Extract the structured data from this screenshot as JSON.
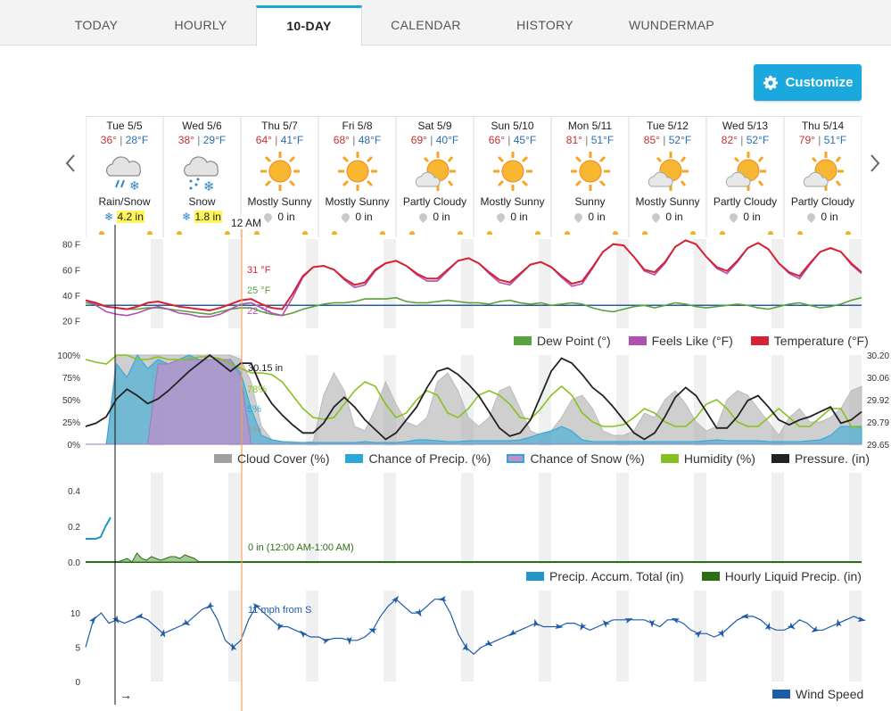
{
  "tabs": [
    {
      "label": "TODAY",
      "active": false
    },
    {
      "label": "HOURLY",
      "active": false
    },
    {
      "label": "10-DAY",
      "active": true
    },
    {
      "label": "CALENDAR",
      "active": false
    },
    {
      "label": "HISTORY",
      "active": false
    },
    {
      "label": "WUNDERMAP",
      "active": false
    }
  ],
  "customize_label": "Customize",
  "days": [
    {
      "name": "Tue 5/5",
      "hi": "36°",
      "lo": "28°F",
      "icon": "cloud-rain-snow-icon",
      "cond": "Rain/Snow",
      "precip": "4.2 in",
      "precip_type": "snow",
      "highlight": true
    },
    {
      "name": "Wed 5/6",
      "hi": "38°",
      "lo": "29°F",
      "icon": "cloud-snow-icon",
      "cond": "Snow",
      "precip": "1.8 in",
      "precip_type": "snow",
      "highlight": true
    },
    {
      "name": "Thu 5/7",
      "hi": "64°",
      "lo": "41°F",
      "icon": "sun-icon",
      "cond": "Mostly Sunny",
      "precip": "0 in",
      "precip_type": "rain",
      "highlight": false
    },
    {
      "name": "Fri 5/8",
      "hi": "68°",
      "lo": "48°F",
      "icon": "sun-icon",
      "cond": "Mostly Sunny",
      "precip": "0 in",
      "precip_type": "rain",
      "highlight": false
    },
    {
      "name": "Sat 5/9",
      "hi": "69°",
      "lo": "40°F",
      "icon": "sun-cloud-icon",
      "cond": "Partly Cloudy",
      "precip": "0 in",
      "precip_type": "rain",
      "highlight": false
    },
    {
      "name": "Sun 5/10",
      "hi": "66°",
      "lo": "45°F",
      "icon": "sun-icon",
      "cond": "Mostly Sunny",
      "precip": "0 in",
      "precip_type": "rain",
      "highlight": false
    },
    {
      "name": "Mon 5/11",
      "hi": "81°",
      "lo": "51°F",
      "icon": "sun-icon",
      "cond": "Sunny",
      "precip": "0 in",
      "precip_type": "rain",
      "highlight": false
    },
    {
      "name": "Tue 5/12",
      "hi": "85°",
      "lo": "52°F",
      "icon": "sun-cloud-icon",
      "cond": "Mostly Sunny",
      "precip": "0 in",
      "precip_type": "rain",
      "highlight": false
    },
    {
      "name": "Wed 5/13",
      "hi": "82°",
      "lo": "52°F",
      "icon": "sun-cloud-icon",
      "cond": "Partly Cloudy",
      "precip": "0 in",
      "precip_type": "rain",
      "highlight": false
    },
    {
      "name": "Thu 5/14",
      "hi": "79°",
      "lo": "51°F",
      "icon": "sun-cloud-icon",
      "cond": "Partly Cloudy",
      "precip": "0 in",
      "precip_type": "rain",
      "highlight": false
    }
  ],
  "cursor": {
    "time_label": "12 AM"
  },
  "colors": {
    "temperature": "#d62234",
    "feels_like": "#b050b0",
    "dew_point": "#5aa13f",
    "cloud_cover": "#a0a0a0",
    "chance_precip": "#2aa8d8",
    "chance_snow": "#c28fc9",
    "humidity": "#86c21f",
    "pressure": "#222222",
    "accum": "#2495c9",
    "hourly_liquid": "#2c6e14",
    "wind": "#1e5ba8",
    "freeze_line": "#2a5d9f",
    "cursor": "#f0a060"
  },
  "chart_data": [
    {
      "type": "line",
      "name": "temperature-panel",
      "ylabel_ticks": [
        "80 F",
        "60 F",
        "40 F",
        "20 F"
      ],
      "yticks": [
        80,
        60,
        40,
        20
      ],
      "ylim": [
        14,
        84
      ],
      "freeze_line": 32,
      "series": [
        {
          "name": "Temperature (°F)",
          "values": [
            36,
            34,
            31,
            30,
            29,
            31,
            34,
            35,
            33,
            31,
            30,
            29,
            28,
            30,
            33,
            36,
            37,
            33,
            30,
            29,
            41,
            55,
            62,
            63,
            60,
            53,
            48,
            50,
            60,
            65,
            67,
            63,
            57,
            53,
            53,
            60,
            67,
            69,
            65,
            58,
            52,
            50,
            57,
            64,
            66,
            62,
            55,
            49,
            51,
            62,
            74,
            80,
            79,
            70,
            60,
            58,
            66,
            78,
            83,
            80,
            70,
            62,
            59,
            67,
            77,
            81,
            76,
            65,
            58,
            55,
            65,
            74,
            77,
            74,
            65,
            58
          ]
        },
        {
          "name": "Feels Like (°F)",
          "values": [
            36,
            32,
            27,
            25,
            24,
            26,
            29,
            31,
            29,
            26,
            25,
            23,
            23,
            25,
            29,
            33,
            34,
            30,
            26,
            24,
            38,
            54,
            62,
            63,
            60,
            52,
            46,
            48,
            59,
            65,
            67,
            63,
            56,
            51,
            51,
            59,
            67,
            69,
            65,
            57,
            50,
            48,
            56,
            64,
            66,
            62,
            54,
            47,
            49,
            61,
            74,
            80,
            79,
            70,
            59,
            56,
            65,
            78,
            83,
            80,
            70,
            61,
            57,
            66,
            77,
            81,
            76,
            65,
            57,
            53,
            64,
            74,
            77,
            74,
            64,
            57
          ]
        },
        {
          "name": "Dew Point (°)",
          "values": [
            34,
            33,
            31,
            30,
            29,
            29,
            30,
            30,
            29,
            28,
            27,
            26,
            25,
            27,
            29,
            30,
            30,
            27,
            25,
            24,
            26,
            29,
            31,
            33,
            34,
            34,
            35,
            37,
            37,
            37,
            38,
            35,
            34,
            34,
            35,
            36,
            35,
            34,
            34,
            33,
            35,
            36,
            34,
            33,
            34,
            32,
            33,
            34,
            33,
            30,
            28,
            27,
            29,
            31,
            32,
            30,
            32,
            34,
            33,
            31,
            30,
            31,
            32,
            33,
            32,
            30,
            29,
            31,
            33,
            34,
            32,
            30,
            31,
            33,
            36,
            38
          ]
        }
      ],
      "readout": {
        "temperature": "31 °F",
        "dew_point": "25 °F",
        "feels_like": "22 °F"
      },
      "legend": [
        "Dew Point (°)",
        "Feels Like (°F)",
        "Temperature (°F)"
      ]
    },
    {
      "type": "area",
      "name": "clouds-precip-panel",
      "left_ticks": [
        "100%",
        "75%",
        "50%",
        "25%",
        "0%"
      ],
      "right_ticks": [
        "30.20",
        "30.06",
        "29.92",
        "29.79",
        "29.65"
      ],
      "series": [
        {
          "name": "Cloud Cover (%)",
          "values": [
            0,
            0,
            0,
            100,
            100,
            100,
            100,
            100,
            100,
            100,
            100,
            100,
            100,
            100,
            100,
            95,
            70,
            20,
            5,
            3,
            3,
            2,
            3,
            55,
            80,
            60,
            20,
            15,
            40,
            70,
            45,
            25,
            20,
            30,
            70,
            80,
            60,
            30,
            20,
            30,
            60,
            65,
            40,
            15,
            10,
            15,
            30,
            50,
            55,
            40,
            15,
            10,
            10,
            15,
            35,
            30,
            50,
            60,
            45,
            25,
            15,
            20,
            50,
            60,
            55,
            40,
            25,
            10,
            30,
            40,
            25,
            25,
            30,
            40,
            60,
            65
          ]
        },
        {
          "name": "Chance of Precip. (%)",
          "values": [
            0,
            0,
            0,
            90,
            75,
            100,
            85,
            95,
            90,
            95,
            100,
            95,
            95,
            95,
            95,
            80,
            40,
            10,
            5,
            3,
            2,
            2,
            2,
            2,
            2,
            2,
            2,
            3,
            2,
            2,
            2,
            3,
            5,
            5,
            4,
            3,
            3,
            4,
            4,
            4,
            4,
            4,
            5,
            8,
            12,
            15,
            20,
            15,
            5,
            3,
            3,
            3,
            3,
            3,
            3,
            3,
            3,
            3,
            3,
            3,
            4,
            5,
            4,
            4,
            4,
            4,
            3,
            3,
            3,
            3,
            4,
            5,
            10,
            20,
            20,
            20
          ]
        },
        {
          "name": "Chance of Snow (%)",
          "values": [
            0,
            0,
            0,
            0,
            0,
            0,
            0,
            90,
            90,
            95,
            95,
            95,
            95,
            95,
            95,
            75,
            0,
            0,
            0,
            0,
            0,
            0,
            0,
            0,
            0,
            0,
            0,
            0,
            0,
            0,
            0,
            0,
            0,
            0,
            0,
            0,
            0,
            0,
            0,
            0,
            0,
            0,
            0,
            0,
            0,
            0,
            0,
            0,
            0,
            0,
            0,
            0,
            0,
            0,
            0,
            0,
            0,
            0,
            0,
            0,
            0,
            0,
            0,
            0,
            0,
            0,
            0,
            0,
            0,
            0,
            0,
            0,
            0,
            0,
            0,
            0
          ]
        },
        {
          "name": "Humidity (%)",
          "values": [
            95,
            92,
            90,
            100,
            100,
            95,
            95,
            98,
            95,
            95,
            96,
            98,
            98,
            96,
            90,
            85,
            80,
            80,
            78,
            70,
            55,
            40,
            30,
            28,
            30,
            45,
            60,
            70,
            65,
            45,
            30,
            35,
            50,
            60,
            55,
            35,
            30,
            40,
            55,
            60,
            55,
            45,
            30,
            28,
            40,
            55,
            65,
            55,
            35,
            25,
            20,
            20,
            22,
            30,
            40,
            35,
            25,
            20,
            20,
            30,
            45,
            50,
            40,
            25,
            20,
            20,
            30,
            40,
            30,
            20,
            20,
            30,
            40,
            40,
            20,
            18
          ]
        },
        {
          "name": "Pressure. (in)",
          "values": [
            29.76,
            29.78,
            29.82,
            29.93,
            29.99,
            29.95,
            29.9,
            29.93,
            29.98,
            30.04,
            30.1,
            30.15,
            30.2,
            30.15,
            30.1,
            30.15,
            30.15,
            30.0,
            29.9,
            29.83,
            29.77,
            29.72,
            29.72,
            29.78,
            29.88,
            29.94,
            29.88,
            29.8,
            29.74,
            29.68,
            29.72,
            29.8,
            29.88,
            30.0,
            30.1,
            30.12,
            30.08,
            30.02,
            29.95,
            29.85,
            29.75,
            29.7,
            29.72,
            29.8,
            29.95,
            30.1,
            30.18,
            30.15,
            30.08,
            30.0,
            29.95,
            29.88,
            29.8,
            29.72,
            29.68,
            29.72,
            29.82,
            29.94,
            30.0,
            29.95,
            29.85,
            29.75,
            29.75,
            29.82,
            29.92,
            29.95,
            29.88,
            29.8,
            29.77,
            29.8,
            29.82,
            29.85,
            29.88,
            29.78,
            29.8,
            29.85
          ]
        }
      ],
      "readout": {
        "pressure": "30.15 in",
        "humidity": "78%",
        "chance_precip": "5%",
        "cloud_cover": "1%"
      },
      "legend": [
        "Cloud Cover (%)",
        "Chance of Precip. (%)",
        "Chance of Snow (%)",
        "Humidity (%)",
        "Pressure. (in)"
      ]
    },
    {
      "type": "area",
      "name": "precip-amount-panel",
      "yticks": [
        "0.4",
        "0.2",
        "0.0"
      ],
      "ylim": [
        0,
        0.5
      ],
      "series": [
        {
          "name": "Precip. Accum. Total (in)",
          "values": [
            0.13,
            0.13,
            0.13,
            0.14,
            0.2,
            0.25
          ]
        },
        {
          "name": "Hourly Liquid Precip. (in)",
          "values": [
            0.0,
            0.01,
            0.02,
            0.0,
            0.05,
            0.02,
            0.01,
            0.03,
            0.02,
            0.01,
            0.02,
            0.03,
            0.03,
            0.02,
            0.04,
            0.03,
            0.02,
            0.0,
            0.0,
            0.0
          ]
        }
      ],
      "readout": "0 in (12:00 AM-1:00 AM)",
      "legend": [
        "Precip. Accum. Total (in)",
        "Hourly Liquid Precip. (in)"
      ]
    },
    {
      "type": "line",
      "name": "wind-panel",
      "yticks": [
        "10",
        "5",
        "0"
      ],
      "ylim": [
        0,
        13
      ],
      "series": [
        {
          "name": "Wind Speed",
          "values": [
            5,
            9,
            10,
            8.5,
            9,
            8.5,
            9,
            9.5,
            9,
            8,
            7,
            7.5,
            8,
            8.5,
            9.5,
            10.5,
            11,
            9,
            6,
            5,
            6,
            9,
            11,
            10,
            9,
            8,
            8,
            7.5,
            7,
            6.5,
            6.5,
            6,
            6.3,
            6.3,
            6,
            6,
            6.5,
            7.5,
            9.5,
            11,
            12,
            11,
            10,
            10,
            11,
            12,
            12,
            10,
            7,
            5,
            4,
            5,
            5.5,
            6,
            6.5,
            7,
            7.5,
            8,
            8.5,
            8,
            8,
            8,
            8.5,
            8.5,
            8,
            7.5,
            8,
            8.5,
            9,
            9,
            9,
            9,
            9,
            8.5,
            8,
            9,
            9,
            8.5,
            7.5,
            7,
            7,
            6.5,
            7,
            8,
            9,
            9.5,
            9.5,
            9,
            8,
            7.5,
            7.5,
            8,
            9,
            8.5,
            7.5,
            7.5,
            8,
            8.5,
            9,
            9.5,
            9
          ]
        }
      ],
      "readout": "11 mph from S",
      "legend": [
        "Wind Speed"
      ]
    }
  ]
}
